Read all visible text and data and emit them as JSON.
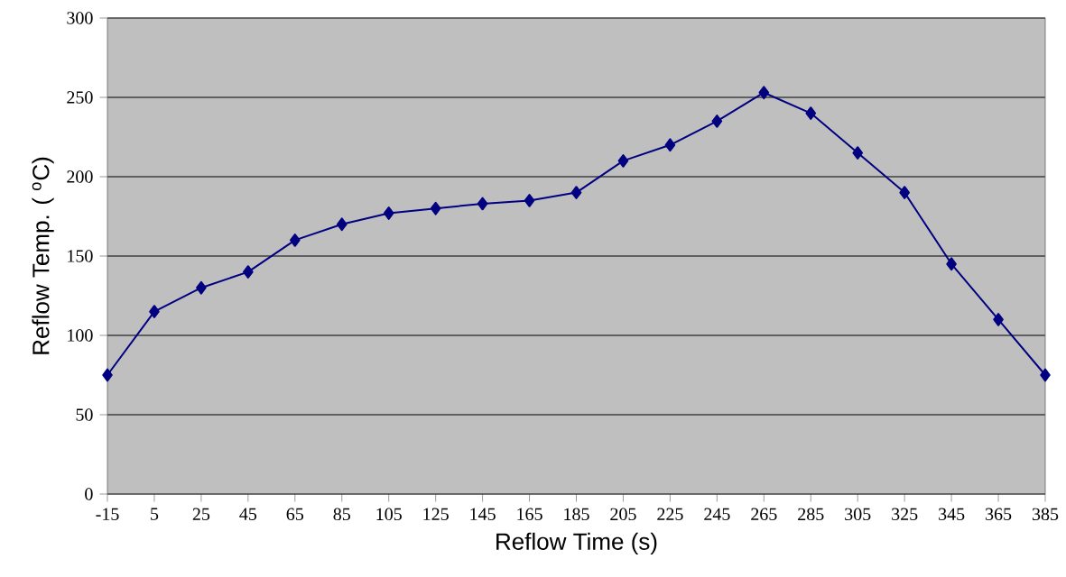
{
  "chart_data": {
    "type": "line",
    "xlabel": "Reflow Time (s)",
    "ylabel": "Reflow Temp. ( $^{o}$C)",
    "x": [
      -15,
      5,
      25,
      45,
      65,
      85,
      105,
      125,
      145,
      165,
      185,
      205,
      225,
      245,
      265,
      285,
      305,
      325,
      345,
      365,
      385
    ],
    "series": [
      {
        "color": "#000080",
        "values": [
          75,
          115,
          130,
          140,
          160,
          170,
          177,
          180,
          183,
          185,
          190,
          210,
          220,
          235,
          253,
          240,
          215,
          190,
          145,
          110,
          75
        ]
      }
    ],
    "xlim": [
      -15,
      385
    ],
    "xticks": [
      -15,
      5,
      25,
      45,
      65,
      85,
      105,
      125,
      145,
      165,
      185,
      205,
      225,
      245,
      265,
      285,
      305,
      325,
      345,
      365,
      385
    ],
    "ylim": [
      0,
      300
    ],
    "yticks": [
      0,
      50,
      100,
      150,
      200,
      250,
      300
    ],
    "grid": "y",
    "marker": "diamond",
    "line_style": "solid"
  }
}
